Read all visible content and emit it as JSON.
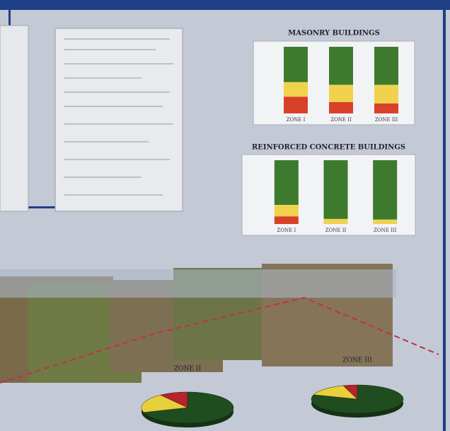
{
  "chart_data": [
    {
      "type": "bar",
      "stacked": true,
      "title": "MASONRY BUILDINGS",
      "categories": [
        "ZONE I",
        "ZONE II",
        "ZONE III"
      ],
      "series": [
        {
          "color": "#d9402a",
          "values": [
            25,
            17,
            15
          ]
        },
        {
          "color": "#f0d24e",
          "values": [
            22,
            26,
            28
          ]
        },
        {
          "color": "#3d7a2e",
          "values": [
            53,
            57,
            57
          ]
        }
      ],
      "ylim": [
        0,
        100
      ]
    },
    {
      "type": "bar",
      "stacked": true,
      "title": "REINFORCED CONCRETE BUILDINGS",
      "categories": [
        "ZONE I",
        "ZONE II",
        "ZONE III"
      ],
      "series": [
        {
          "color": "#d9402a",
          "values": [
            12,
            0,
            0
          ]
        },
        {
          "color": "#f0d24e",
          "values": [
            18,
            8,
            7
          ]
        },
        {
          "color": "#3d7a2e",
          "values": [
            70,
            92,
            93
          ]
        }
      ],
      "ylim": [
        0,
        100
      ]
    },
    {
      "type": "pie",
      "title": "ZONE II",
      "values": [
        70,
        20,
        10
      ],
      "colors": [
        "#1f4d1f",
        "#e8d03a",
        "#b8222a"
      ]
    },
    {
      "type": "pie",
      "title": "ZONE III",
      "values": [
        80,
        15,
        5
      ],
      "colors": [
        "#1f4d1f",
        "#e8d03a",
        "#b8222a"
      ]
    }
  ]
}
